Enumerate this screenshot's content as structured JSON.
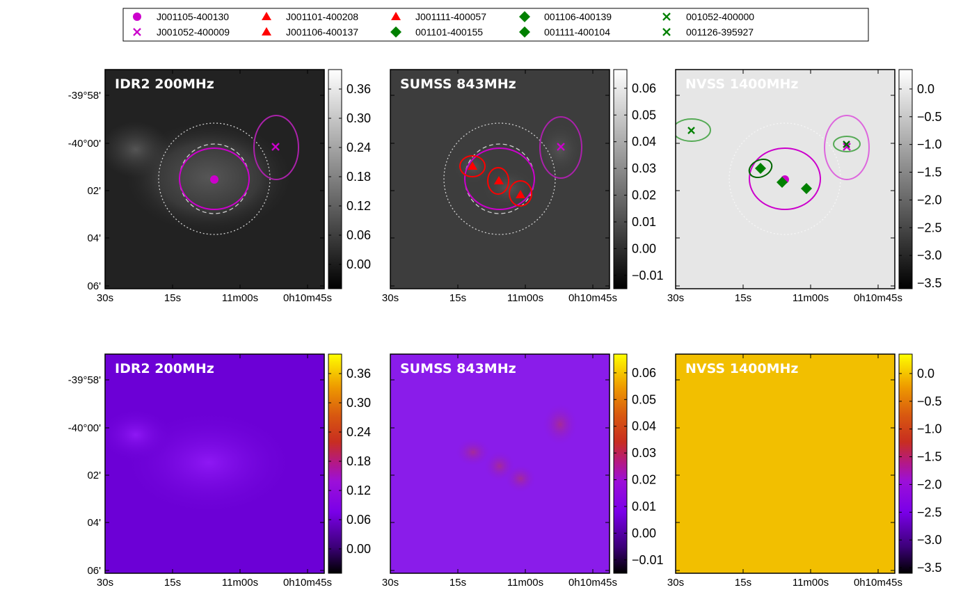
{
  "legend": {
    "entries": [
      {
        "label": "J001105-400130",
        "marker": "circle",
        "color": "#cc00cc"
      },
      {
        "label": "J001052-400009",
        "marker": "x",
        "color": "#cc00cc"
      },
      {
        "label": "J001101-400208",
        "marker": "triangle",
        "color": "#ff0000"
      },
      {
        "label": "J001106-400137",
        "marker": "triangle",
        "color": "#ff0000"
      },
      {
        "label": "J001111-400057",
        "marker": "triangle",
        "color": "#ff0000"
      },
      {
        "label": "001101-400155",
        "marker": "diamond",
        "color": "#008000"
      },
      {
        "label": "001106-400139",
        "marker": "diamond",
        "color": "#008000"
      },
      {
        "label": "001111-400104",
        "marker": "diamond",
        "color": "#008000"
      },
      {
        "label": "001052-400000",
        "marker": "x",
        "color": "#008000"
      },
      {
        "label": "001126-395927",
        "marker": "x",
        "color": "#008000"
      }
    ]
  },
  "axes": {
    "x_ticks": [
      "30s",
      "15s",
      "11m00s",
      "0h10m45s"
    ],
    "y_ticks": [
      "-39°58'",
      "-40°00'",
      "02'",
      "04'",
      "06'"
    ]
  },
  "colors": {
    "magenta": "#cc00cc",
    "red": "#ff0000",
    "green": "#008000",
    "nvss_gray_bg": "#e6e6e6",
    "nvss_yellow_bg": "#f2bf00"
  },
  "chart_data": [
    {
      "type": "heatmap",
      "title": "IDR2 200MHz",
      "colormap": "gray",
      "colorbar_ticks": [
        "0.36",
        "0.30",
        "0.24",
        "0.18",
        "0.12",
        "0.06",
        "0.00"
      ],
      "colorbar_range": [
        -0.05,
        0.4
      ],
      "markers": [
        {
          "source": "J001105-400130",
          "marker": "circle"
        },
        {
          "source": "J001052-400009",
          "marker": "x"
        }
      ]
    },
    {
      "type": "heatmap",
      "title": "SUMSS 843MHz",
      "colormap": "gray",
      "colorbar_ticks": [
        "0.06",
        "0.05",
        "0.04",
        "0.03",
        "0.02",
        "0.01",
        "0.00",
        "−0.01"
      ],
      "colorbar_range": [
        -0.015,
        0.067
      ],
      "markers": [
        {
          "source": "J001052-400009",
          "marker": "x"
        },
        {
          "source": "J001101-400208",
          "marker": "triangle"
        },
        {
          "source": "J001106-400137",
          "marker": "triangle"
        },
        {
          "source": "J001111-400057",
          "marker": "triangle"
        }
      ]
    },
    {
      "type": "heatmap",
      "title": "NVSS 1400MHz",
      "colormap": "gray",
      "colorbar_ticks": [
        "0.0",
        "−0.5",
        "−1.0",
        "−1.5",
        "−2.0",
        "−2.5",
        "−3.0",
        "−3.5"
      ],
      "colorbar_range": [
        -3.6,
        0.35
      ],
      "markers": [
        {
          "source": "J001105-400130",
          "marker": "circle"
        },
        {
          "source": "J001052-400009",
          "marker": "x"
        },
        {
          "source": "001101-400155",
          "marker": "diamond"
        },
        {
          "source": "001106-400139",
          "marker": "diamond"
        },
        {
          "source": "001111-400104",
          "marker": "diamond"
        },
        {
          "source": "001052-400000",
          "marker": "x"
        },
        {
          "source": "001126-395927",
          "marker": "x"
        }
      ]
    },
    {
      "type": "heatmap",
      "title": "IDR2 200MHz",
      "colormap": "gnuplot",
      "colorbar_ticks": [
        "0.36",
        "0.30",
        "0.24",
        "0.18",
        "0.12",
        "0.06",
        "0.00"
      ],
      "colorbar_range": [
        -0.05,
        0.4
      ]
    },
    {
      "type": "heatmap",
      "title": "SUMSS 843MHz",
      "colormap": "gnuplot",
      "colorbar_ticks": [
        "0.06",
        "0.05",
        "0.04",
        "0.03",
        "0.02",
        "0.01",
        "0.00",
        "−0.01"
      ],
      "colorbar_range": [
        -0.015,
        0.067
      ]
    },
    {
      "type": "heatmap",
      "title": "NVSS 1400MHz",
      "colormap": "gnuplot",
      "colorbar_ticks": [
        "0.0",
        "−0.5",
        "−1.0",
        "−1.5",
        "−2.0",
        "−2.5",
        "−3.0",
        "−3.5"
      ],
      "colorbar_range": [
        -3.6,
        0.35
      ]
    }
  ]
}
